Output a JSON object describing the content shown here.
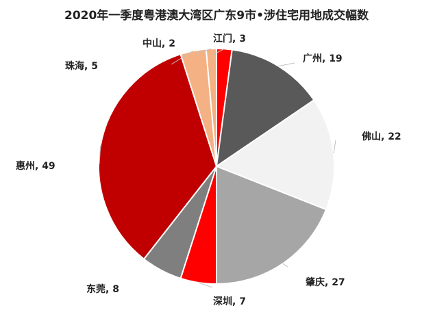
{
  "chart_data": {
    "type": "pie",
    "title": "2020年一季度粤港澳大湾区广东9市•涉住宅用地成交幅数",
    "categories": [
      "江门",
      "广州",
      "佛山",
      "肇庆",
      "深圳",
      "东莞",
      "惠州",
      "珠海",
      "中山"
    ],
    "values": [
      3,
      19,
      22,
      27,
      7,
      8,
      49,
      5,
      2
    ],
    "labels": [
      "江门, 3",
      "广州, 19",
      "佛山, 22",
      "肇庆, 27",
      "深圳, 7",
      "东莞, 8",
      "惠州, 49",
      "珠海, 5",
      "中山, 2"
    ],
    "colors": [
      "#ff0000",
      "#595959",
      "#f2f2f2",
      "#a6a6a6",
      "#ff0000",
      "#7f7f7f",
      "#c00000",
      "#f4b183",
      "#f4b183"
    ],
    "start_angle_deg": 0,
    "direction": "clockwise",
    "legend": "none"
  }
}
